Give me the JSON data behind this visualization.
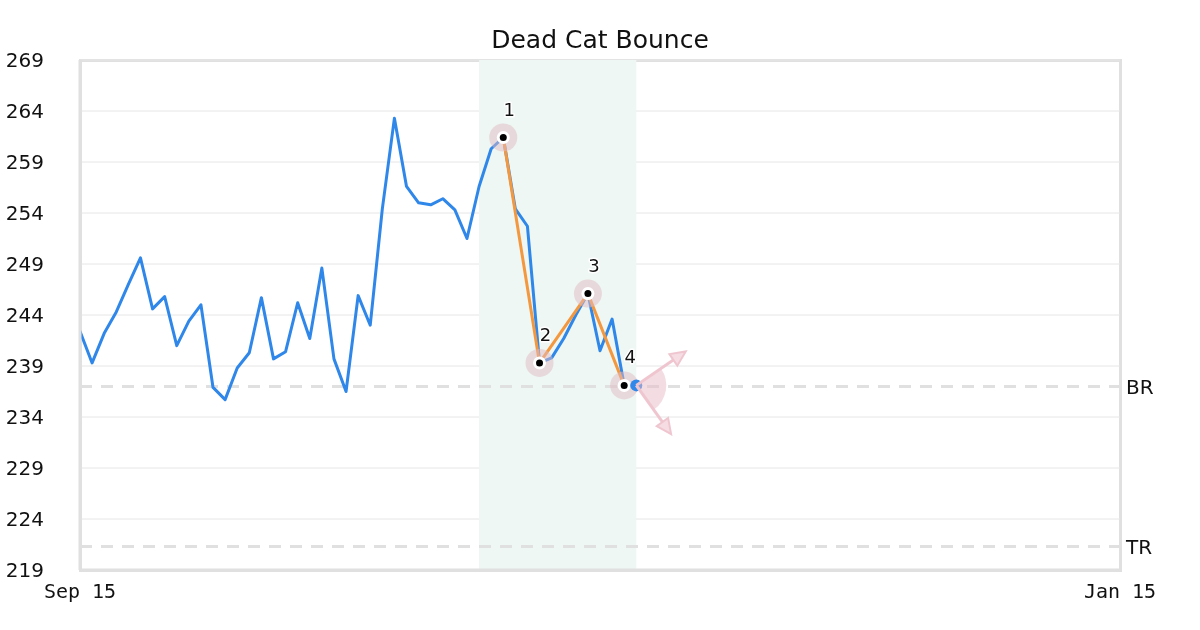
{
  "chart_data": {
    "type": "line",
    "title": "Dead Cat Bounce",
    "categories": [
      "Sep 15",
      null,
      null,
      null,
      null,
      null,
      null,
      null,
      null,
      null,
      null,
      null,
      null,
      null,
      null,
      null,
      null,
      null,
      null,
      null,
      null,
      null,
      null,
      null,
      null,
      null,
      null,
      null,
      null,
      null,
      null,
      null,
      null,
      null,
      null,
      null,
      null,
      null,
      null,
      null,
      null,
      null,
      null,
      null,
      null,
      null,
      null,
      null,
      null,
      null,
      null,
      null,
      null,
      null,
      null,
      null,
      null,
      null,
      null,
      null,
      null,
      null,
      null,
      null,
      null,
      null,
      null,
      null,
      null,
      null,
      null,
      null,
      null,
      null,
      null,
      null,
      null,
      null,
      null,
      null,
      null,
      null,
      null,
      null,
      null,
      null,
      "Jan 15"
    ],
    "series": [
      {
        "color": "#2f87e9",
        "values": [
          242.4,
          239.3,
          242.2,
          244.3,
          247.0,
          249.6,
          244.6,
          245.8,
          241.0,
          243.4,
          245.0,
          236.9,
          235.7,
          238.8,
          240.3,
          245.7,
          239.7,
          240.4,
          245.2,
          241.7,
          248.6,
          239.7,
          236.5,
          245.9,
          243.0,
          254.4,
          263.3,
          256.6,
          255.0,
          254.8,
          255.4,
          254.3,
          251.5,
          256.6,
          260.3,
          261.4,
          254.4,
          252.7,
          239.3,
          239.8,
          241.7,
          244.0,
          246.1,
          240.5,
          243.6,
          237.1,
          237.1,
          null,
          null,
          null,
          null,
          null,
          null,
          null,
          null,
          null,
          null,
          null,
          null,
          null,
          null,
          null,
          null,
          null,
          null,
          null,
          null,
          null,
          null,
          null,
          null,
          null,
          null,
          null,
          null,
          null,
          null,
          null,
          null,
          null,
          null,
          null,
          null,
          null,
          null,
          null,
          null
        ]
      },
      {
        "color": "#f4983f",
        "marker": "circle",
        "values": [
          null,
          null,
          null,
          null,
          null,
          null,
          null,
          null,
          null,
          null,
          null,
          null,
          null,
          null,
          null,
          null,
          null,
          null,
          null,
          null,
          null,
          null,
          null,
          null,
          null,
          null,
          null,
          null,
          null,
          null,
          null,
          null,
          null,
          null,
          null,
          261.4,
          null,
          null,
          239.3,
          null,
          null,
          null,
          246.1,
          null,
          null,
          237.1,
          null,
          null,
          null,
          null,
          null,
          null,
          null,
          null,
          null,
          null,
          null,
          null,
          null,
          null,
          null,
          null,
          null,
          null,
          null,
          null,
          null,
          null,
          null,
          null,
          null,
          null,
          null,
          null,
          null,
          null,
          null,
          null,
          null,
          null,
          null,
          null,
          null,
          null,
          null,
          null,
          null
        ]
      },
      {
        "type": "scatter",
        "color": "#2f87e9",
        "values": [
          null,
          null,
          null,
          null,
          null,
          null,
          null,
          null,
          null,
          null,
          null,
          null,
          null,
          null,
          null,
          null,
          null,
          null,
          null,
          null,
          null,
          null,
          null,
          null,
          null,
          null,
          null,
          null,
          null,
          null,
          null,
          null,
          null,
          null,
          null,
          null,
          null,
          null,
          null,
          null,
          null,
          null,
          null,
          null,
          null,
          null,
          237.1,
          null,
          null,
          null,
          null,
          null,
          null,
          null,
          null,
          null,
          null,
          null,
          null,
          null,
          null,
          null,
          null,
          null,
          null,
          null,
          null,
          null,
          null,
          null,
          null,
          null,
          null,
          null,
          null,
          null,
          null,
          null,
          null,
          null,
          null,
          null,
          null,
          null,
          null,
          null,
          null
        ]
      }
    ],
    "annotations": [
      {
        "text": "1",
        "y": 261.4
      },
      {
        "text": "2",
        "y": 239.3
      },
      {
        "text": "3",
        "y": 246.1
      },
      {
        "text": "4",
        "y": 237.1
      }
    ],
    "ylim": [
      219,
      269
    ],
    "yticks": [
      219,
      224,
      229,
      234,
      239,
      244,
      249,
      254,
      259,
      264,
      269
    ],
    "grid": "y",
    "ref_lines": [
      {
        "axis": "y",
        "value": 237.0,
        "label": "BR",
        "color": "#e0e0e0",
        "line_style": "dashed"
      },
      {
        "axis": "y",
        "value": 221.3,
        "label": "TR",
        "color": "#e0e0e0",
        "line_style": "dashed"
      }
    ]
  }
}
